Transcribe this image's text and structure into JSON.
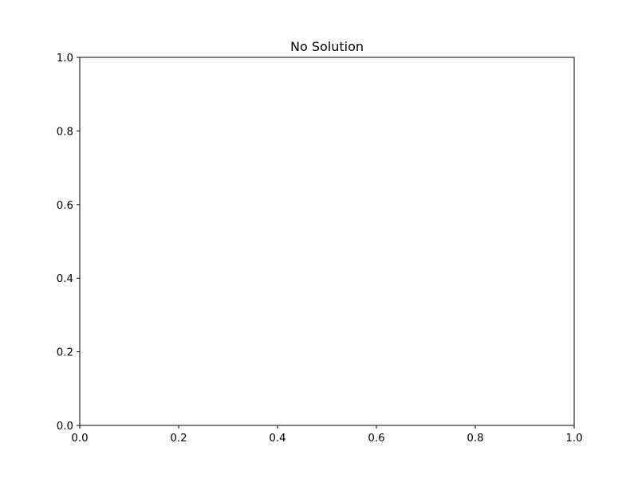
{
  "chart_data": {
    "type": "line",
    "title": "No Solution",
    "xlabel": "",
    "ylabel": "",
    "xlim": [
      0.0,
      1.0
    ],
    "ylim": [
      0.0,
      1.0
    ],
    "xticks": [
      0.0,
      0.2,
      0.4,
      0.6,
      0.8,
      1.0
    ],
    "yticks": [
      0.0,
      0.2,
      0.4,
      0.6,
      0.8,
      1.0
    ],
    "xtick_labels": [
      "0.0",
      "0.2",
      "0.4",
      "0.6",
      "0.8",
      "1.0"
    ],
    "ytick_labels": [
      "0.0",
      "0.2",
      "0.4",
      "0.6",
      "0.8",
      "1.0"
    ],
    "series": [],
    "grid": false,
    "legend": "none"
  },
  "colors": {
    "background": "#ffffff",
    "axes": "#000000",
    "text": "#000000"
  }
}
